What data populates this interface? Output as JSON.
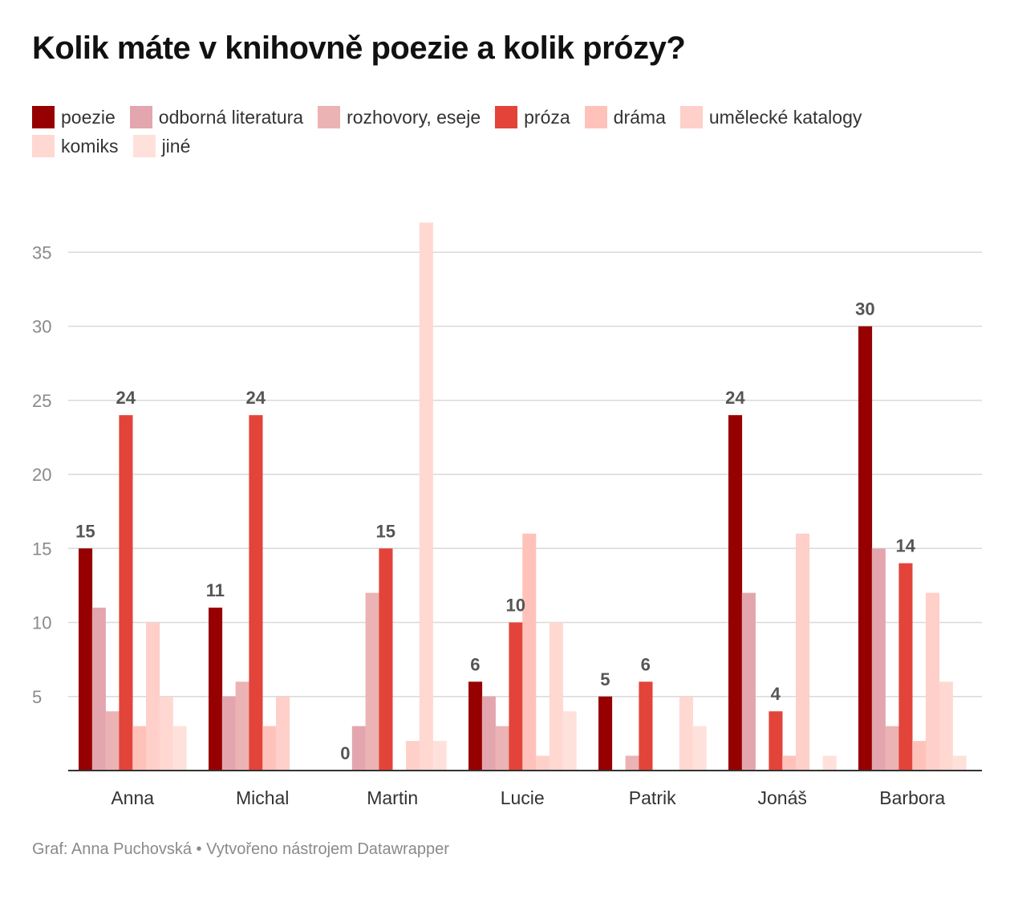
{
  "title": "Kolik máte v knihovně poezie a kolik prózy?",
  "footer": "Graf: Anna Puchovská • Vytvořeno nástrojem Datawrapper",
  "chart_data": {
    "type": "bar",
    "categories": [
      "Anna",
      "Michal",
      "Martin",
      "Lucie",
      "Patrik",
      "Jonáš",
      "Barbora"
    ],
    "series": [
      {
        "name": "poezie",
        "color": "#960000",
        "values": [
          15,
          11,
          0,
          6,
          5,
          24,
          30
        ]
      },
      {
        "name": "odborná literatura",
        "color": "#e3a6ae",
        "values": [
          11,
          5,
          3,
          5,
          0,
          12,
          15
        ]
      },
      {
        "name": "rozhovory, eseje",
        "color": "#ebb3b3",
        "values": [
          4,
          6,
          12,
          3,
          1,
          0,
          3
        ]
      },
      {
        "name": "próza",
        "color": "#e2443a",
        "values": [
          24,
          24,
          15,
          10,
          6,
          4,
          14
        ]
      },
      {
        "name": "dráma",
        "color": "#ffc2bb",
        "values": [
          3,
          3,
          0,
          16,
          0,
          1,
          2
        ]
      },
      {
        "name": "umělecké katalogy",
        "color": "#ffcfc9",
        "values": [
          10,
          5,
          2,
          1,
          0,
          16,
          12
        ]
      },
      {
        "name": "komiks",
        "color": "#ffd8d2",
        "values": [
          5,
          0,
          37,
          10,
          5,
          0,
          6
        ]
      },
      {
        "name": "jiné",
        "color": "#ffe1db",
        "values": [
          3,
          0,
          2,
          4,
          3,
          1,
          1
        ]
      }
    ],
    "value_labels": [
      {
        "category": "Anna",
        "series": "poezie",
        "text": "15"
      },
      {
        "category": "Anna",
        "series": "próza",
        "text": "24"
      },
      {
        "category": "Michal",
        "series": "poezie",
        "text": "11"
      },
      {
        "category": "Michal",
        "series": "próza",
        "text": "24"
      },
      {
        "category": "Martin",
        "series": "poezie",
        "text": "0"
      },
      {
        "category": "Martin",
        "series": "próza",
        "text": "15"
      },
      {
        "category": "Lucie",
        "series": "poezie",
        "text": "6"
      },
      {
        "category": "Lucie",
        "series": "próza",
        "text": "10"
      },
      {
        "category": "Patrik",
        "series": "poezie",
        "text": "5"
      },
      {
        "category": "Patrik",
        "series": "próza",
        "text": "6"
      },
      {
        "category": "Jonáš",
        "series": "poezie",
        "text": "24"
      },
      {
        "category": "Jonáš",
        "series": "próza",
        "text": "4"
      },
      {
        "category": "Barbora",
        "series": "poezie",
        "text": "30"
      },
      {
        "category": "Barbora",
        "series": "próza",
        "text": "14"
      }
    ],
    "yticks": [
      "5",
      "10",
      "15",
      "20",
      "25",
      "30",
      "35"
    ],
    "ylim": [
      0,
      37
    ],
    "xlabel": "",
    "ylabel": "",
    "grid": true,
    "legend_position": "top"
  }
}
